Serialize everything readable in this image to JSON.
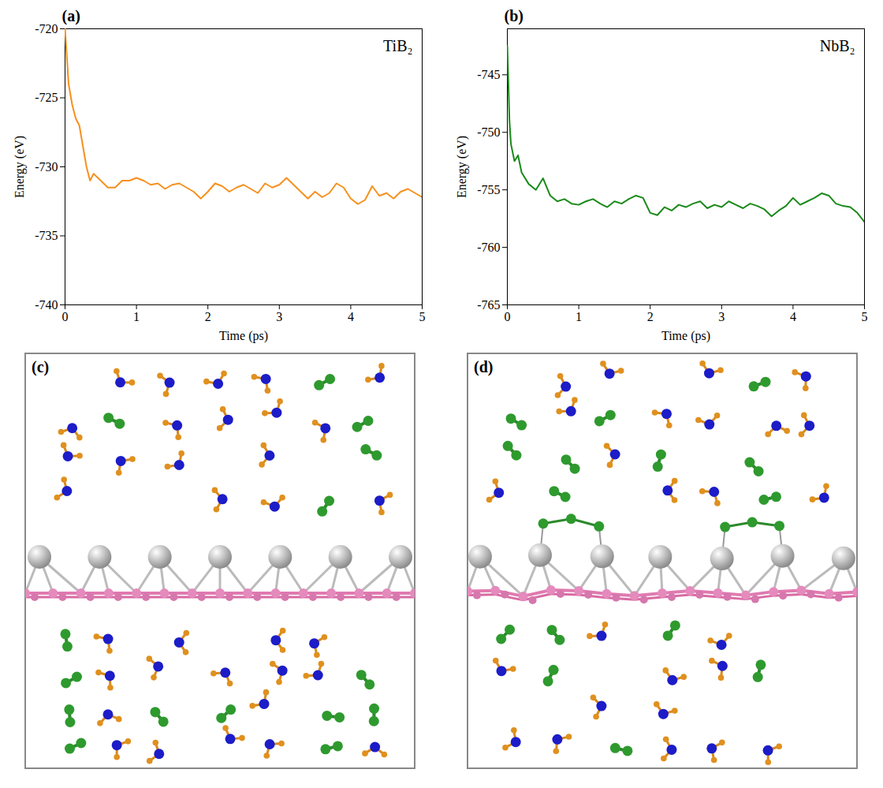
{
  "chart_data": [
    {
      "type": "line",
      "title": "TiB₂",
      "annotations": [
        "(a)"
      ],
      "x_label": "Time (ps)",
      "y_label": "Energy (eV)",
      "xlim": [
        0,
        5
      ],
      "xticks": [
        0,
        1,
        2,
        3,
        4,
        5
      ],
      "ylim": [
        -740,
        -720
      ],
      "yticks": [
        -740,
        -735,
        -730,
        -725,
        -720
      ],
      "color": "#f7901e",
      "x": [
        0,
        0.05,
        0.1,
        0.15,
        0.2,
        0.25,
        0.3,
        0.35,
        0.4,
        0.5,
        0.6,
        0.7,
        0.8,
        0.9,
        1.0,
        1.1,
        1.2,
        1.3,
        1.4,
        1.5,
        1.6,
        1.7,
        1.8,
        1.9,
        2.0,
        2.1,
        2.2,
        2.3,
        2.4,
        2.5,
        2.6,
        2.7,
        2.8,
        2.9,
        3.0,
        3.1,
        3.2,
        3.3,
        3.4,
        3.5,
        3.6,
        3.7,
        3.8,
        3.9,
        4.0,
        4.1,
        4.2,
        4.3,
        4.4,
        4.5,
        4.6,
        4.7,
        4.8,
        4.9,
        5.0
      ],
      "values": [
        -720,
        -724,
        -725.5,
        -726.5,
        -727,
        -728.5,
        -730,
        -731,
        -730.5,
        -731,
        -731.5,
        -731.5,
        -731,
        -731,
        -730.8,
        -731,
        -731.3,
        -731.2,
        -731.6,
        -731.3,
        -731.2,
        -731.5,
        -731.8,
        -732.3,
        -731.8,
        -731.2,
        -731.4,
        -731.8,
        -731.5,
        -731.3,
        -731.6,
        -731.9,
        -731.2,
        -731.5,
        -731.3,
        -730.8,
        -731.3,
        -731.8,
        -732.3,
        -731.8,
        -732.2,
        -731.9,
        -731.2,
        -731.5,
        -732.3,
        -732.7,
        -732.4,
        -731.4,
        -732.1,
        -731.9,
        -732.3,
        -731.8,
        -731.6,
        -731.9,
        -732.2
      ]
    },
    {
      "type": "line",
      "title": "NbB₂",
      "annotations": [
        "(b)"
      ],
      "x_label": "Time (ps)",
      "y_label": "Energy (eV)",
      "xlim": [
        0,
        5
      ],
      "xticks": [
        0,
        1,
        2,
        3,
        4,
        5
      ],
      "ylim": [
        -765,
        -741
      ],
      "yticks": [
        -765,
        -760,
        -755,
        -750,
        -745
      ],
      "color": "#1a8a1a",
      "x": [
        0,
        0.03,
        0.05,
        0.1,
        0.15,
        0.2,
        0.3,
        0.4,
        0.5,
        0.6,
        0.7,
        0.8,
        0.9,
        1.0,
        1.1,
        1.2,
        1.3,
        1.4,
        1.5,
        1.6,
        1.7,
        1.8,
        1.9,
        2.0,
        2.1,
        2.2,
        2.3,
        2.4,
        2.5,
        2.6,
        2.7,
        2.8,
        2.9,
        3.0,
        3.1,
        3.2,
        3.3,
        3.4,
        3.5,
        3.6,
        3.7,
        3.8,
        3.9,
        4.0,
        4.1,
        4.2,
        4.3,
        4.4,
        4.5,
        4.6,
        4.7,
        4.8,
        4.9,
        5.0
      ],
      "values": [
        -742.5,
        -749,
        -751,
        -752.5,
        -752,
        -753.5,
        -754.5,
        -755,
        -754,
        -755.5,
        -756,
        -755.8,
        -756.2,
        -756.3,
        -756,
        -755.8,
        -756.2,
        -756.5,
        -756,
        -756.2,
        -755.8,
        -755.5,
        -755.7,
        -757,
        -757.2,
        -756.5,
        -756.8,
        -756.3,
        -756.5,
        -756.2,
        -756,
        -756.6,
        -756.3,
        -756.5,
        -756,
        -756.3,
        -756.6,
        -756.2,
        -756.4,
        -756.7,
        -757.3,
        -756.8,
        -756.4,
        -755.7,
        -756.3,
        -756,
        -755.7,
        -755.3,
        -755.5,
        -756.2,
        -756.4,
        -756.5,
        -757,
        -757.8
      ]
    }
  ],
  "snapshots": [
    {
      "label": "(c)"
    },
    {
      "label": "(d)"
    }
  ]
}
